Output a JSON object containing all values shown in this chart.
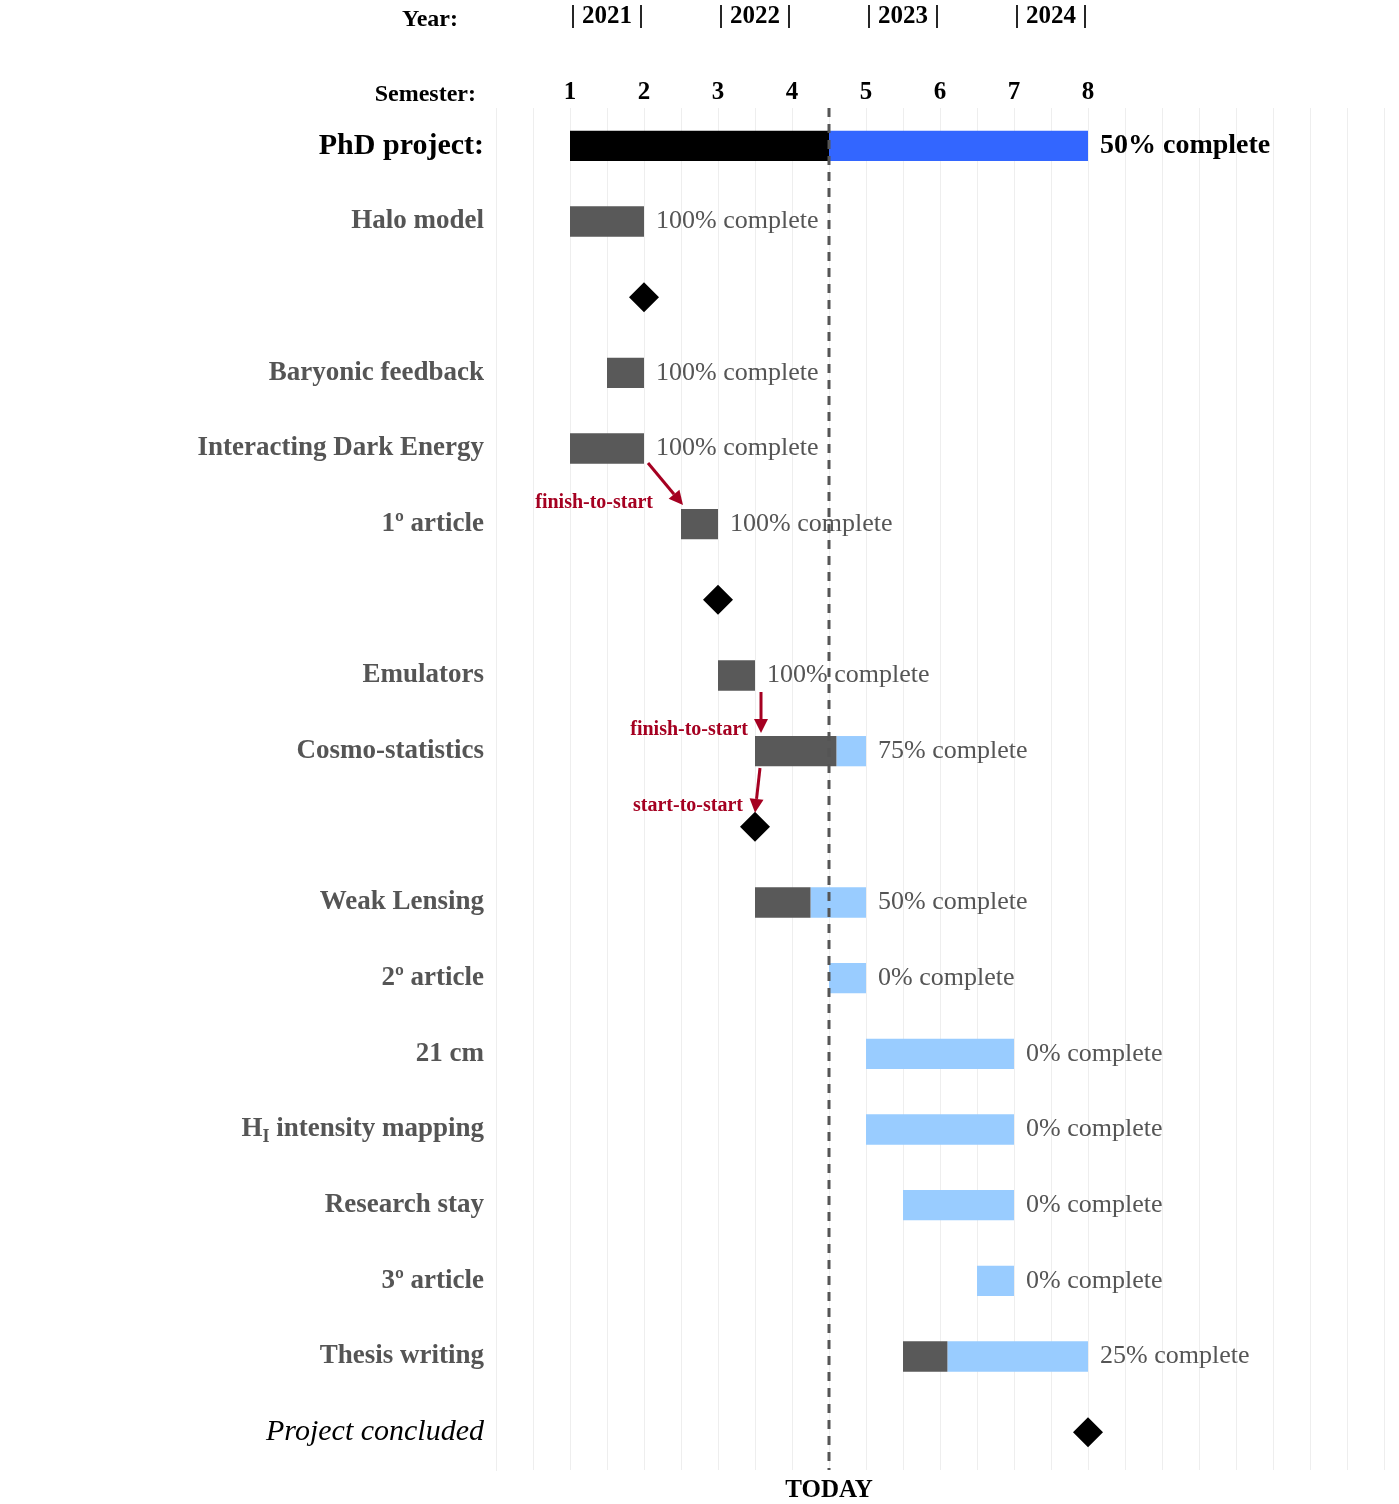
{
  "chart_data": {
    "type": "bar",
    "orientation": "horizontal",
    "xlabel": "Semester:",
    "x2label": "Year:",
    "title": "PhD project:",
    "categories": [
      null,
      "Halo model",
      null,
      "Baryonic feedback",
      "Interacting Dark Energy",
      "1º article",
      null,
      "Emulators",
      "Cosmo-statistics",
      null,
      "Weak Lensing",
      "2º article",
      "21 cm",
      "H$_{I}$ intensity mapping",
      "Research stay",
      "3º article",
      "Thesis writing",
      "Project concluded"
    ],
    "series": [
      {
        "type": "bar",
        "colors": [
          "#000000",
          "#595959",
          "#595959",
          "#595959",
          "#595959",
          "#595959",
          "#595959",
          "#595959",
          "#595959",
          "#595959",
          "#595959",
          "#595959",
          "#595959",
          "#595959",
          "#595959",
          "#595959",
          "#595959",
          "#595959"
        ],
        "base": [
          1,
          1,
          null,
          1.5,
          1,
          2.5,
          null,
          3,
          3.5,
          null,
          3.5,
          null,
          null,
          null,
          null,
          null,
          5.5,
          null
        ],
        "values": [
          3.5,
          1,
          null,
          0.5,
          1,
          0.5,
          null,
          0.5,
          1.1,
          null,
          0.75,
          null,
          null,
          null,
          null,
          null,
          0.6,
          null
        ]
      },
      {
        "type": "bar",
        "colors": [
          "#3366ff",
          "#99ccff",
          "#99ccff",
          "#99ccff",
          "#99ccff",
          "#99ccff",
          "#99ccff",
          "#99ccff",
          "#99ccff",
          "#99ccff",
          "#99ccff",
          "#99ccff",
          "#99ccff",
          "#99ccff",
          "#99ccff",
          "#99ccff",
          "#99ccff",
          "#99ccff"
        ],
        "base": [
          4.5,
          null,
          null,
          null,
          null,
          null,
          null,
          null,
          4.6,
          null,
          4.25,
          4.5,
          5,
          5,
          5.5,
          6.5,
          6.1,
          null
        ],
        "values": [
          3.5,
          null,
          null,
          null,
          null,
          null,
          null,
          null,
          0.4,
          null,
          0.75,
          0.5,
          2,
          2,
          1.5,
          0.5,
          1.9,
          null
        ]
      },
      {
        "type": "scatter",
        "color": "#000000",
        "marker": "diamond",
        "values": [
          null,
          null,
          2,
          null,
          null,
          null,
          3,
          null,
          null,
          3.5,
          null,
          null,
          null,
          null,
          null,
          null,
          null,
          8
        ]
      }
    ],
    "xlim": [
      0,
      12
    ],
    "xticks": [
      {
        "value": 0,
        "label": null
      },
      {
        "value": 0.5,
        "label": null
      },
      1,
      {
        "value": 1.5,
        "label": null
      },
      2,
      {
        "value": 2.5,
        "label": null
      },
      3,
      {
        "value": 3.5,
        "label": null
      },
      4,
      {
        "value": 4.5,
        "label": null
      },
      5,
      {
        "value": 5.5,
        "label": null
      },
      6,
      {
        "value": 6.5,
        "label": null
      },
      7,
      {
        "value": 7.5,
        "label": null
      },
      8,
      {
        "value": 8.5,
        "label": null
      },
      {
        "value": 9,
        "label": null
      },
      {
        "value": 9.5,
        "label": null
      },
      {
        "value": 10,
        "label": null
      },
      {
        "value": 10.5,
        "label": null
      },
      {
        "value": 11,
        "label": null
      },
      {
        "value": 11.5,
        "label": null
      },
      {
        "value": 12,
        "label": null
      }
    ],
    "x2lim": [
      2020.25,
      2026.25
    ],
    "x2ticks": [
      {
        "value": 2021,
        "label": "| 2021 |"
      },
      {
        "value": 2022,
        "label": "| 2022 |"
      },
      {
        "value": 2023,
        "label": "| 2023 |"
      },
      {
        "value": 2024,
        "label": "| 2024 |"
      }
    ],
    "grid": "x",
    "ref_lines": [
      {
        "axis": "x",
        "value": 4.5,
        "label": "TODAY",
        "color": "#555555",
        "line_style": "dashed"
      }
    ],
    "annotations": [
      "50% complete",
      "100% complete",
      "100% complete",
      "100% complete",
      "100% complete",
      "100% complete",
      "75% complete",
      "50% complete",
      "0% complete",
      "0% complete",
      "0% complete",
      "0% complete",
      "0% complete",
      "25% complete",
      "finish-to-start",
      "finish-to-start",
      {
        "text": "start-to-start",
        "x": 3.5
      }
    ]
  }
}
